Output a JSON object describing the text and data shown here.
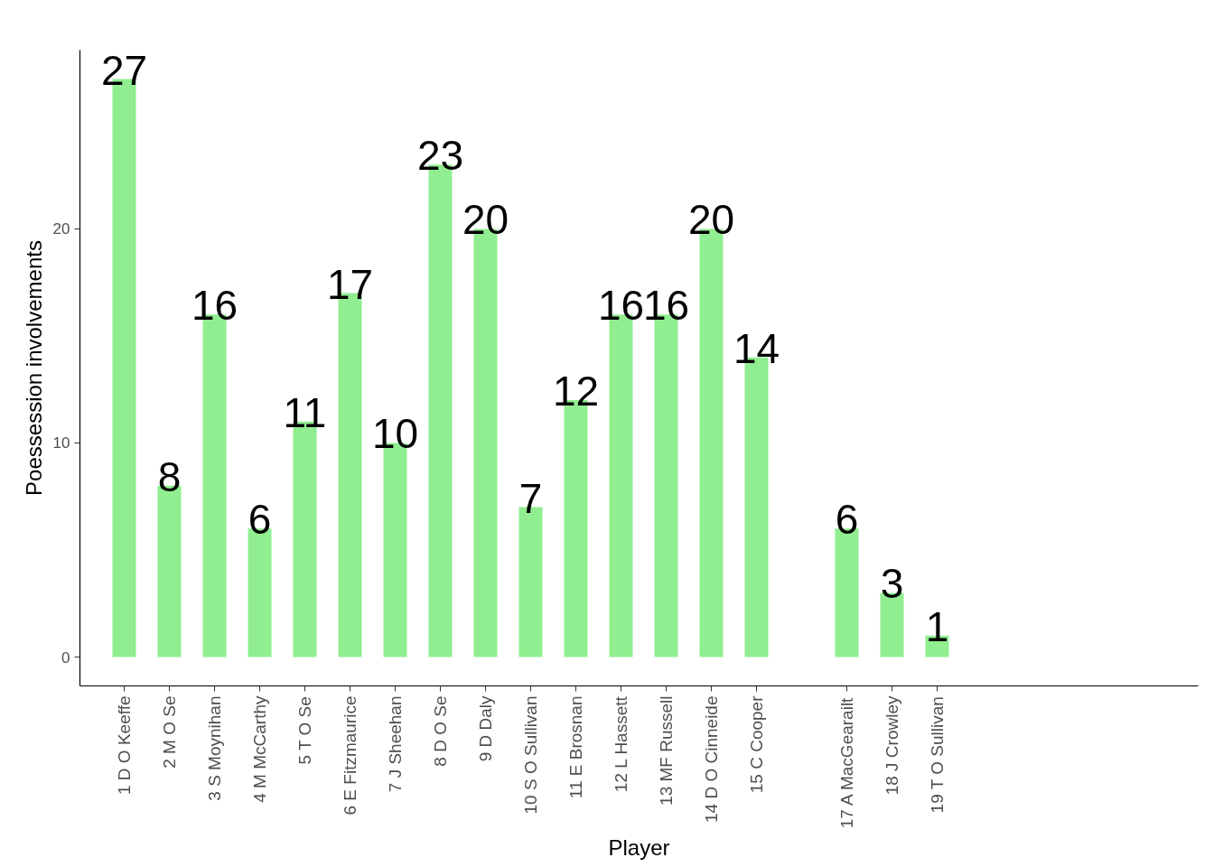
{
  "chart_data": {
    "type": "bar",
    "xlabel": "Player",
    "ylabel": "Poessession involvements",
    "categories": [
      "1 D O Keeffe",
      "2 M O Se",
      "3 S Moynihan",
      "4 M McCarthy",
      "5 T O Se",
      "6 E Fitzmaurice",
      "7 J Sheehan",
      "8 D O Se",
      "9 D Daly",
      "10 S O Sullivan",
      "11 E Brosnan",
      "12 L Hassett",
      "13 MF Russell",
      "14 D O Cinneide",
      "15 C Cooper",
      null,
      "17 A MacGearailt",
      "18 J Crowley",
      "19 T O Sullivan",
      null,
      null,
      null,
      null,
      null
    ],
    "values": [
      27,
      8,
      16,
      6,
      11,
      17,
      10,
      23,
      20,
      7,
      12,
      16,
      16,
      20,
      14,
      null,
      6,
      3,
      1,
      null,
      null,
      null,
      null,
      null
    ],
    "color": "#90ee90",
    "ylim": [
      -1.35,
      28.35
    ],
    "yticks": [
      0,
      10,
      20
    ],
    "grid": false,
    "data_labels": true
  }
}
